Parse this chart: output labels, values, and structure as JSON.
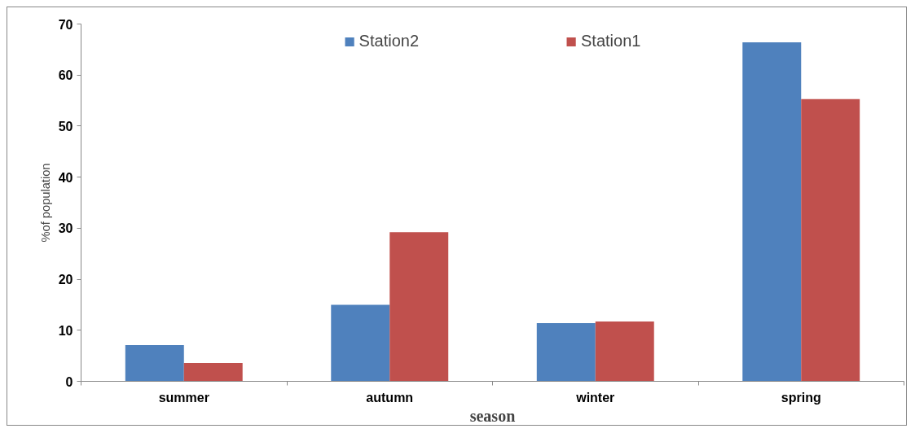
{
  "chart_data": {
    "type": "bar",
    "xlabel": "season",
    "ylabel": "%of population",
    "categories": [
      "summer",
      "autumn",
      "winter",
      "spring"
    ],
    "series": [
      {
        "name": "Station2",
        "color": "#4f81bd",
        "values": [
          7.1,
          15.0,
          11.4,
          66.4
        ]
      },
      {
        "name": "Station1",
        "color": "#c0504d",
        "values": [
          3.6,
          29.2,
          11.7,
          55.3
        ]
      }
    ],
    "ylim": [
      0,
      70
    ],
    "yticks": [
      0,
      10,
      20,
      30,
      40,
      50,
      60,
      70
    ],
    "grid": false,
    "legend": "top"
  }
}
